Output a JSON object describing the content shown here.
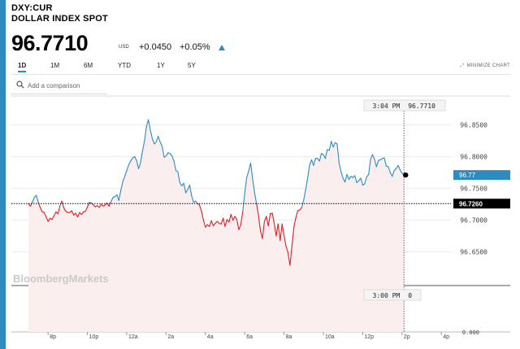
{
  "header": {
    "ticker": "DXY:CUR",
    "name": "DOLLAR INDEX SPOT"
  },
  "quote": {
    "price": "96.7710",
    "currency": "USD",
    "change_abs": "+0.0450",
    "change_pct": "+0.05%",
    "direction": "up"
  },
  "range_tabs": [
    {
      "label": "1D",
      "active": true
    },
    {
      "label": "1M",
      "active": false
    },
    {
      "label": "6M",
      "active": false
    },
    {
      "label": "YTD",
      "active": false
    },
    {
      "label": "1Y",
      "active": false
    },
    {
      "label": "5Y",
      "active": false
    }
  ],
  "minimize_label": "MINIMIZE CHART",
  "comparison": {
    "placeholder": "Add a comparison"
  },
  "watermark": "BloombergMarkets",
  "colors": {
    "up": "#2e8bc0",
    "down": "#e31b23",
    "fill": "#fbeeee",
    "accent": "#2e8bc0"
  },
  "chart_data": {
    "type": "line",
    "x_ticks": [
      "8p",
      "10p",
      "12a",
      "2a",
      "4a",
      "6a",
      "8a",
      "10a",
      "12p",
      "2p",
      "4p"
    ],
    "y_ticks": [
      "96.8500",
      "96.8000",
      "96.7500",
      "96.7000",
      "96.6500"
    ],
    "volume_zero_label": "0.000",
    "ylim": [
      96.615,
      96.88
    ],
    "previous_close": "96.7260",
    "current_value_label": "96.77",
    "crosshair": {
      "time": "3:04 PM",
      "value": "96.7710",
      "volume_time": "3:00 PM",
      "volume_value": "0"
    },
    "x_hours": [
      0,
      0.1,
      0.2,
      0.3,
      0.4,
      0.5,
      0.6,
      0.7,
      0.8,
      0.9,
      1.0,
      1.1,
      1.2,
      1.3,
      1.4,
      1.5,
      1.6,
      1.7,
      1.8,
      1.9,
      2.0,
      2.1,
      2.2,
      2.3,
      2.4,
      2.5,
      2.6,
      2.7,
      2.8,
      2.9,
      3.0,
      3.1,
      3.2,
      3.3,
      3.4,
      3.5,
      3.6,
      3.7,
      3.8,
      3.9,
      4.0,
      4.1,
      4.2,
      4.3,
      4.4,
      4.5,
      4.6,
      4.7,
      4.8,
      4.9,
      5.0,
      5.1,
      5.2,
      5.3,
      5.4,
      5.5,
      5.6,
      5.7,
      5.8,
      5.9,
      6.0,
      6.1,
      6.2,
      6.3,
      6.4,
      6.5,
      6.6,
      6.7,
      6.8,
      6.9,
      7.0,
      7.1,
      7.2,
      7.3,
      7.4,
      7.5,
      7.6,
      7.7,
      7.8,
      7.9,
      8.0,
      8.1,
      8.2,
      8.3,
      8.4,
      8.5,
      8.6,
      8.7,
      8.8,
      8.9,
      9.0,
      9.1,
      9.2,
      9.3,
      9.4,
      9.5,
      9.6,
      9.7,
      9.8,
      9.9,
      10.0,
      10.1,
      10.2,
      10.3,
      10.4,
      10.5,
      10.6,
      10.7,
      10.8,
      10.9,
      11.0,
      11.1,
      11.2,
      11.3,
      11.4,
      11.5,
      11.6,
      11.7,
      11.8,
      11.9,
      12.0,
      12.1,
      12.2,
      12.3,
      12.4,
      12.5,
      12.6,
      12.7,
      12.8,
      12.9,
      13.0,
      13.1,
      13.2,
      13.3,
      13.4,
      13.5,
      13.6,
      13.7,
      13.8,
      13.9,
      14.0,
      14.1,
      14.2,
      14.3,
      14.4,
      14.5,
      14.6,
      14.7,
      14.8,
      14.9,
      15.0,
      15.1,
      15.2,
      15.3,
      15.4,
      15.5,
      15.6,
      15.7,
      15.8,
      15.9,
      16.0,
      16.1,
      16.2,
      16.3,
      16.4,
      16.5,
      16.6,
      16.7,
      16.8,
      16.9,
      17.0,
      17.1,
      17.2,
      17.3,
      17.4,
      17.5,
      17.6,
      17.7,
      17.8,
      17.9,
      18.0,
      18.1,
      18.2,
      18.3,
      18.4,
      18.5,
      18.6,
      18.7,
      18.8,
      18.9,
      19.0,
      19.1
    ],
    "values": [
      96.726,
      96.722,
      96.728,
      96.736,
      96.739,
      96.728,
      96.72,
      96.713,
      96.712,
      96.705,
      96.698,
      96.703,
      96.701,
      96.707,
      96.713,
      96.71,
      96.722,
      96.73,
      96.719,
      96.714,
      96.712,
      96.712,
      96.715,
      96.708,
      96.711,
      96.705,
      96.712,
      96.709,
      96.713,
      96.714,
      96.721,
      96.728,
      96.727,
      96.724,
      96.721,
      96.723,
      96.72,
      96.725,
      96.722,
      96.724,
      96.727,
      96.722,
      96.729,
      96.736,
      96.737,
      96.74,
      96.731,
      96.747,
      96.761,
      96.769,
      96.778,
      96.787,
      96.793,
      96.798,
      96.8,
      96.794,
      96.781,
      96.79,
      96.809,
      96.824,
      96.847,
      96.858,
      96.842,
      96.828,
      96.82,
      96.823,
      96.832,
      96.823,
      96.816,
      96.799,
      96.801,
      96.806,
      96.805,
      96.801,
      96.793,
      96.778,
      96.776,
      96.759,
      96.754,
      96.758,
      96.743,
      96.748,
      96.755,
      96.738,
      96.728,
      96.73,
      96.726,
      96.724,
      96.714,
      96.7,
      96.689,
      96.693,
      96.69,
      96.699,
      96.691,
      96.695,
      96.698,
      96.695,
      96.694,
      96.703,
      96.69,
      96.701,
      96.697,
      96.709,
      96.7,
      96.706,
      96.701,
      96.685,
      96.693,
      96.714,
      96.742,
      96.767,
      96.777,
      96.79,
      96.765,
      96.743,
      96.726,
      96.708,
      96.683,
      96.671,
      96.698,
      96.706,
      96.691,
      96.71,
      96.711,
      96.695,
      96.675,
      96.694,
      96.668,
      96.694,
      96.676,
      96.659,
      96.649,
      96.629,
      96.659,
      96.689,
      96.704,
      96.715,
      96.716,
      96.72,
      96.732,
      96.748,
      96.766,
      96.787,
      96.795,
      96.786,
      96.797,
      96.797,
      96.793,
      96.805,
      96.803,
      96.797,
      96.811,
      96.81,
      96.824,
      96.815,
      96.822,
      96.82,
      96.79,
      96.776,
      96.766,
      96.76,
      96.772,
      96.764,
      96.769,
      96.767,
      96.77,
      96.759,
      96.762,
      96.766,
      96.755,
      96.757,
      96.768,
      96.772,
      96.796,
      96.803,
      96.796,
      96.784,
      96.794,
      96.795,
      96.797,
      96.798,
      96.785,
      96.784,
      96.775,
      96.769,
      96.778,
      96.781,
      96.786,
      96.779,
      96.774,
      96.771
    ]
  }
}
